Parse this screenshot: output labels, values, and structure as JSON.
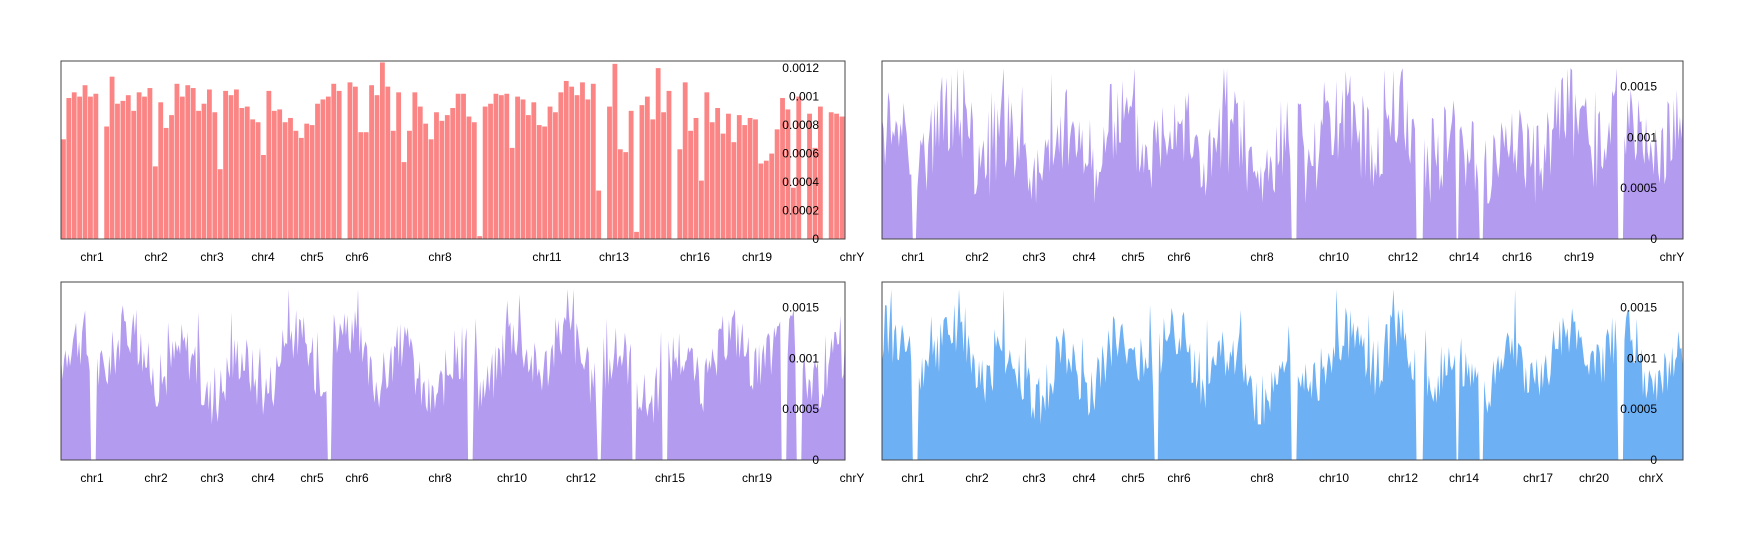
{
  "charts": [
    {
      "type": "bar",
      "color": "#fa8584",
      "ylim": [
        0,
        0.00125
      ],
      "yticks": [
        "0",
        "0.0002",
        "0.0004",
        "0.0006",
        "0.0008",
        "0.001",
        "0.0012"
      ],
      "ytick_values": [
        0,
        0.0002,
        0.0004,
        0.0006,
        0.0008,
        0.001,
        0.0012
      ],
      "chromosome_labels": [
        "chr1",
        "chr2",
        "chr3",
        "chr4",
        "chr5",
        "chr6",
        "chr8",
        "chr11",
        "chr13",
        "chr16",
        "chr19",
        "chrY"
      ],
      "values": [
        0.0007,
        0.00099,
        0.00103,
        0.001,
        0.00108,
        0.001,
        0.00102,
        0.0,
        0.00079,
        0.00114,
        0.00095,
        0.00097,
        0.00101,
        0.0009,
        0.00103,
        0.001,
        0.00106,
        0.00051,
        0.00096,
        0.00078,
        0.00087,
        0.00109,
        0.001,
        0.00108,
        0.00106,
        0.0009,
        0.00095,
        0.00105,
        0.00089,
        0.00049,
        0.00104,
        0.00101,
        0.00105,
        0.00092,
        0.00093,
        0.00084,
        0.00082,
        0.00059,
        0.00104,
        0.0009,
        0.00091,
        0.00082,
        0.00085,
        0.00076,
        0.00071,
        0.00081,
        0.0008,
        0.00095,
        0.00098,
        0.001,
        0.00109,
        0.00104,
        0.0,
        0.0011,
        0.00107,
        0.00075,
        0.00075,
        0.00108,
        0.00101,
        0.00124,
        0.00107,
        0.00076,
        0.00103,
        0.00054,
        0.00076,
        0.00103,
        0.00093,
        0.00081,
        0.0007,
        0.00089,
        0.00083,
        0.00087,
        0.00092,
        0.00102,
        0.00102,
        0.00086,
        0.00082,
        2e-05,
        0.00093,
        0.00095,
        0.00102,
        0.00101,
        0.00102,
        0.00064,
        0.001,
        0.00098,
        0.00087,
        0.00096,
        0.0008,
        0.00079,
        0.00093,
        0.00089,
        0.00103,
        0.00111,
        0.00107,
        0.00101,
        0.0011,
        0.00098,
        0.00109,
        0.00034,
        0.0,
        0.00093,
        0.00123,
        0.00063,
        0.00061,
        0.0009,
        5e-05,
        0.00094,
        0.001,
        0.00084,
        0.0012,
        0.00089,
        0.00104,
        0.0,
        0.00063,
        0.0011,
        0.00076,
        0.00085,
        0.00041,
        0.00103,
        0.00082,
        0.00092,
        0.00074,
        0.00088,
        0.00068,
        0.00087,
        0.0008,
        0.00085,
        0.00084,
        0.00053,
        0.00055,
        0.0006,
        0.00077,
        0.00099,
        0.00091,
        0.00036,
        0.001,
        0.0,
        0.00088,
        0.00064,
        0.00093,
        0.0,
        0.00089,
        0.00088,
        0.00086
      ]
    },
    {
      "type": "area",
      "color": "#b39cf0",
      "ylim": [
        0,
        0.00175
      ],
      "yticks": [
        "0",
        "0.0005",
        "0.001",
        "0.0015"
      ],
      "ytick_values": [
        0,
        0.0005,
        0.001,
        0.0015
      ],
      "chromosome_labels": [
        "chr1",
        "chr2",
        "chr3",
        "chr4",
        "chr5",
        "chr6",
        "chr8",
        "chr10",
        "chr12",
        "chr14",
        "chr16",
        "chr19",
        "chrY"
      ],
      "fill_style": "spiky"
    },
    {
      "type": "area",
      "color": "#b39cf0",
      "ylim": [
        0,
        0.00175
      ],
      "yticks": [
        "0",
        "0.0005",
        "0.001",
        "0.0015"
      ],
      "ytick_values": [
        0,
        0.0005,
        0.001,
        0.0015
      ],
      "chromosome_labels": [
        "chr1",
        "chr2",
        "chr3",
        "chr4",
        "chr5",
        "chr6",
        "chr8",
        "chr10",
        "chr12",
        "chr15",
        "chr19",
        "chrY"
      ],
      "fill_style": "smooth"
    },
    {
      "type": "area",
      "color": "#6eb0f4",
      "ylim": [
        0,
        0.00175
      ],
      "yticks": [
        "0",
        "0.0005",
        "0.001",
        "0.0015"
      ],
      "ytick_values": [
        0,
        0.0005,
        0.001,
        0.0015
      ],
      "chromosome_labels": [
        "chr1",
        "chr2",
        "chr3",
        "chr4",
        "chr5",
        "chr6",
        "chr8",
        "chr10",
        "chr12",
        "chr14",
        "chr17",
        "chr20",
        "chrX"
      ],
      "fill_style": "smooth"
    }
  ]
}
